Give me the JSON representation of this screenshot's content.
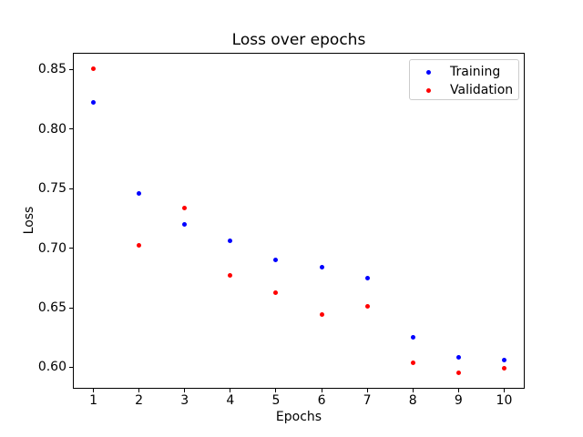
{
  "figure": {
    "background_color": "#ffffff",
    "text_color": "#000000"
  },
  "chart_data": {
    "type": "scatter",
    "title": "Loss over epochs",
    "xlabel": "Epochs",
    "ylabel": "Loss",
    "x": [
      1,
      2,
      3,
      4,
      5,
      6,
      7,
      8,
      9,
      10
    ],
    "series": [
      {
        "name": "Training",
        "color": "#0000ff",
        "values": [
          0.822,
          0.746,
          0.72,
          0.706,
          0.69,
          0.684,
          0.675,
          0.625,
          0.608,
          0.606
        ]
      },
      {
        "name": "Validation",
        "color": "#ff0000",
        "values": [
          0.851,
          0.702,
          0.734,
          0.677,
          0.663,
          0.644,
          0.651,
          0.604,
          0.595,
          0.599
        ]
      }
    ],
    "xlim": [
      0.55,
      10.45
    ],
    "ylim": [
      0.582,
      0.864
    ],
    "xticks": [
      1,
      2,
      3,
      4,
      5,
      6,
      7,
      8,
      9,
      10
    ],
    "xtick_labels": [
      "1",
      "2",
      "3",
      "4",
      "5",
      "6",
      "7",
      "8",
      "9",
      "10"
    ],
    "yticks": [
      0.6,
      0.65,
      0.7,
      0.75,
      0.8,
      0.85
    ],
    "ytick_labels": [
      "0.60",
      "0.65",
      "0.70",
      "0.75",
      "0.80",
      "0.85"
    ],
    "grid": false,
    "legend_position": "upper right",
    "legend_entries": [
      {
        "label": "Training",
        "marker_color": "#0000ff"
      },
      {
        "label": "Validation",
        "marker_color": "#ff0000"
      }
    ]
  }
}
